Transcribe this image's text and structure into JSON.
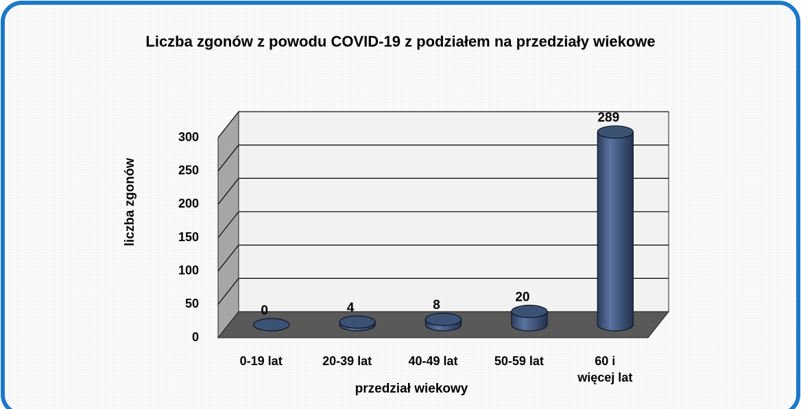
{
  "chart_data": {
    "type": "bar",
    "title": "Liczba zgonów z powodu COVID-19 z podziałem na przedziały wiekowe",
    "y_axis_label": "liczba zgonów",
    "x_axis_label": "przedział wiekowy",
    "categories": [
      "0-19 lat",
      "20-39 lat",
      "40-49 lat",
      "50-59 lat",
      "60 i\nwięcej lat"
    ],
    "values": [
      0,
      4,
      8,
      20,
      289
    ],
    "color": "#3c5275",
    "ylim": [
      0,
      300
    ],
    "yticks": [
      0,
      50,
      100,
      150,
      200,
      250,
      300
    ],
    "grid": true
  }
}
